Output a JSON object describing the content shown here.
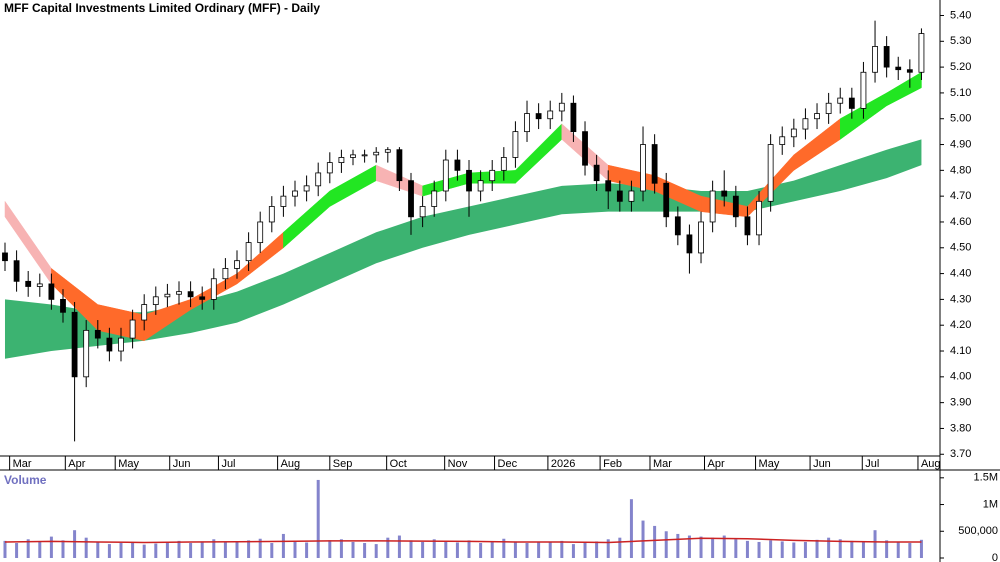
{
  "chart_data": [
    {
      "type": "candlestick",
      "title": "MFF Capital Investments Limited Ordinary (MFF) - Daily",
      "xlim": [
        -0.43,
        80.6
      ],
      "xticks": [
        {
          "value": 0.4,
          "label": "Mar"
        },
        {
          "value": 5.2,
          "label": "Apr"
        },
        {
          "value": 9.5,
          "label": "May"
        },
        {
          "value": 14.2,
          "label": "Jun"
        },
        {
          "value": 18.4,
          "label": "Jul"
        },
        {
          "value": 23.5,
          "label": "Aug"
        },
        {
          "value": 28,
          "label": "Sep"
        },
        {
          "value": 32.9,
          "label": "Oct"
        },
        {
          "value": 37.9,
          "label": "Nov"
        },
        {
          "value": 42.2,
          "label": "Dec"
        },
        {
          "value": 46.8,
          "label": "2026"
        },
        {
          "value": 51.3,
          "label": "Feb"
        },
        {
          "value": 55.6,
          "label": "Mar"
        },
        {
          "value": 60.3,
          "label": "Apr"
        },
        {
          "value": 64.7,
          "label": "May"
        },
        {
          "value": 69.4,
          "label": "Jun"
        },
        {
          "value": 73.9,
          "label": "Jul"
        },
        {
          "value": 78.7,
          "label": "Aug"
        }
      ],
      "ylim": [
        3.67,
        5.46
      ],
      "yticks": [
        {
          "value": 3.7,
          "label": "3.70"
        },
        {
          "value": 3.8,
          "label": "3.80"
        },
        {
          "value": 3.9,
          "label": "3.90"
        },
        {
          "value": 4.0,
          "label": "4.00"
        },
        {
          "value": 4.1,
          "label": "4.10"
        },
        {
          "value": 4.2,
          "label": "4.20"
        },
        {
          "value": 4.3,
          "label": "4.30"
        },
        {
          "value": 4.4,
          "label": "4.40"
        },
        {
          "value": 4.5,
          "label": "4.50"
        },
        {
          "value": 4.6,
          "label": "4.60"
        },
        {
          "value": 4.7,
          "label": "4.70"
        },
        {
          "value": 4.8,
          "label": "4.80"
        },
        {
          "value": 4.9,
          "label": "4.90"
        },
        {
          "value": 5.0,
          "label": "5.00"
        },
        {
          "value": 5.1,
          "label": "5.10"
        },
        {
          "value": 5.2,
          "label": "5.20"
        },
        {
          "value": 5.3,
          "label": "5.30"
        },
        {
          "value": 5.4,
          "label": "5.40"
        }
      ],
      "open": [
        4.48,
        4.45,
        4.37,
        4.35,
        4.36,
        4.3,
        4.25,
        4.0,
        4.18,
        4.15,
        4.1,
        4.15,
        4.22,
        4.28,
        4.31,
        4.32,
        4.33,
        4.31,
        4.3,
        4.38,
        4.42,
        4.45,
        4.52,
        4.6,
        4.66,
        4.7,
        4.72,
        4.74,
        4.79,
        4.83,
        4.85,
        4.86,
        4.86,
        4.87,
        4.88,
        4.76,
        4.62,
        4.66,
        4.72,
        4.84,
        4.8,
        4.72,
        4.76,
        4.8,
        4.85,
        4.95,
        5.02,
        5.0,
        5.03,
        5.06,
        4.95,
        4.82,
        4.76,
        4.72,
        4.68,
        4.72,
        4.9,
        4.75,
        4.62,
        4.55,
        4.48,
        4.6,
        4.72,
        4.7,
        4.62,
        4.55,
        4.68,
        4.9,
        4.93,
        4.96,
        5.0,
        5.02,
        5.06,
        5.08,
        5.04,
        5.18,
        5.28,
        5.2,
        5.19,
        5.18
      ],
      "high": [
        4.52,
        4.49,
        4.41,
        4.4,
        4.4,
        4.34,
        4.29,
        4.22,
        4.22,
        4.19,
        4.19,
        4.26,
        4.32,
        4.35,
        4.36,
        4.37,
        4.37,
        4.35,
        4.42,
        4.46,
        4.49,
        4.56,
        4.64,
        4.7,
        4.74,
        4.76,
        4.78,
        4.83,
        4.87,
        4.88,
        4.88,
        4.88,
        4.89,
        4.89,
        4.89,
        4.79,
        4.7,
        4.76,
        4.88,
        4.88,
        4.84,
        4.8,
        4.84,
        4.89,
        4.99,
        5.07,
        5.06,
        5.07,
        5.1,
        5.09,
        4.99,
        4.86,
        4.8,
        4.76,
        4.76,
        4.97,
        4.94,
        4.79,
        4.66,
        4.59,
        4.64,
        4.76,
        4.8,
        4.74,
        4.66,
        4.72,
        4.94,
        4.97,
        5.0,
        5.04,
        5.06,
        5.1,
        5.12,
        5.12,
        5.22,
        5.38,
        5.32,
        5.24,
        5.23,
        5.35
      ],
      "low": [
        4.41,
        4.33,
        4.31,
        4.31,
        4.26,
        4.21,
        3.75,
        3.96,
        4.11,
        4.06,
        4.06,
        4.11,
        4.18,
        4.24,
        4.27,
        4.28,
        4.27,
        4.26,
        4.26,
        4.34,
        4.38,
        4.41,
        4.48,
        4.56,
        4.62,
        4.66,
        4.68,
        4.7,
        4.75,
        4.79,
        4.82,
        4.83,
        4.83,
        4.83,
        4.72,
        4.55,
        4.58,
        4.62,
        4.68,
        4.76,
        4.62,
        4.68,
        4.72,
        4.76,
        4.81,
        4.91,
        4.96,
        4.96,
        4.99,
        4.91,
        4.78,
        4.72,
        4.65,
        4.64,
        4.64,
        4.68,
        4.71,
        4.58,
        4.51,
        4.4,
        4.44,
        4.56,
        4.66,
        4.58,
        4.51,
        4.51,
        4.64,
        4.86,
        4.89,
        4.92,
        4.96,
        4.98,
        5.02,
        5.0,
        5.0,
        5.14,
        5.16,
        5.15,
        5.12,
        5.15
      ],
      "close": [
        4.45,
        4.37,
        4.35,
        4.36,
        4.3,
        4.25,
        4.0,
        4.18,
        4.15,
        4.1,
        4.15,
        4.22,
        4.28,
        4.31,
        4.32,
        4.33,
        4.31,
        4.3,
        4.38,
        4.42,
        4.45,
        4.52,
        4.6,
        4.66,
        4.7,
        4.72,
        4.74,
        4.79,
        4.83,
        4.85,
        4.86,
        4.86,
        4.87,
        4.88,
        4.76,
        4.62,
        4.66,
        4.72,
        4.84,
        4.8,
        4.72,
        4.76,
        4.8,
        4.85,
        4.95,
        5.02,
        5.0,
        5.03,
        5.06,
        4.95,
        4.82,
        4.76,
        4.72,
        4.68,
        4.72,
        4.9,
        4.75,
        4.62,
        4.55,
        4.48,
        4.6,
        4.72,
        4.7,
        4.62,
        4.55,
        4.68,
        4.9,
        4.93,
        4.96,
        5.0,
        5.02,
        5.06,
        5.08,
        5.04,
        5.18,
        5.28,
        5.2,
        5.19,
        5.18,
        5.33
      ],
      "ma_x": [
        0,
        4,
        8,
        12,
        16,
        20,
        24,
        28,
        32,
        36,
        40,
        44,
        48,
        52,
        56,
        60,
        64,
        68,
        72,
        76,
        79
      ],
      "long_band": {
        "upper": [
          4.3,
          4.28,
          4.25,
          4.25,
          4.28,
          4.33,
          4.4,
          4.48,
          4.56,
          4.62,
          4.66,
          4.7,
          4.74,
          4.75,
          4.74,
          4.72,
          4.72,
          4.76,
          4.82,
          4.88,
          4.92
        ],
        "lower": [
          4.07,
          4.1,
          4.12,
          4.14,
          4.17,
          4.21,
          4.28,
          4.36,
          4.44,
          4.5,
          4.55,
          4.59,
          4.63,
          4.64,
          4.64,
          4.64,
          4.64,
          4.68,
          4.72,
          4.77,
          4.82
        ]
      },
      "short_band": {
        "upper": [
          4.68,
          4.42,
          4.28,
          4.24,
          4.3,
          4.4,
          4.56,
          4.72,
          4.82,
          4.74,
          4.79,
          4.8,
          4.98,
          4.82,
          4.78,
          4.7,
          4.66,
          4.86,
          5.0,
          5.1,
          5.18
        ],
        "lower": [
          4.62,
          4.36,
          4.18,
          4.14,
          4.26,
          4.36,
          4.5,
          4.66,
          4.76,
          4.7,
          4.75,
          4.75,
          4.92,
          4.76,
          4.72,
          4.64,
          4.62,
          4.8,
          4.92,
          5.05,
          5.12
        ]
      },
      "colors": {
        "up": "#ffffff",
        "down": "#000000",
        "long_band": "#3cb371",
        "rising": "#22e622",
        "falling": "#f7b3b3",
        "overlap": "#ff6a2a"
      }
    },
    {
      "type": "bar",
      "title": "Volume",
      "color": "#8484cc",
      "ma_color": "#cc2222",
      "xlim": [
        -0.43,
        80.6
      ],
      "ylim": [
        -75000,
        1590000
      ],
      "yticks": [
        {
          "value": 1500000,
          "label": "1.5M"
        },
        {
          "value": 1000000,
          "label": "1M"
        },
        {
          "value": 500000,
          "label": "500,000"
        },
        0
      ],
      "values": [
        320000,
        280000,
        350000,
        300000,
        400000,
        330000,
        520000,
        380000,
        300000,
        260000,
        280000,
        300000,
        250000,
        270000,
        300000,
        320000,
        280000,
        310000,
        350000,
        290000,
        300000,
        330000,
        360000,
        280000,
        450000,
        300000,
        290000,
        1460000,
        330000,
        350000,
        300000,
        280000,
        260000,
        380000,
        420000,
        330000,
        300000,
        350000,
        310000,
        290000,
        330000,
        280000,
        300000,
        360000,
        310000,
        280000,
        290000,
        300000,
        320000,
        260000,
        290000,
        310000,
        350000,
        380000,
        1100000,
        700000,
        600000,
        500000,
        450000,
        420000,
        400000,
        380000,
        420000,
        350000,
        320000,
        300000,
        330000,
        310000,
        290000,
        300000,
        340000,
        380000,
        350000,
        320000,
        310000,
        520000,
        330000,
        300000,
        280000,
        340000
      ],
      "ma_x": [
        0,
        4,
        8,
        12,
        16,
        20,
        24,
        28,
        32,
        36,
        40,
        44,
        48,
        52,
        56,
        60,
        64,
        68,
        72,
        76,
        79
      ],
      "ma": [
        300000,
        310000,
        300000,
        290000,
        300000,
        305000,
        310000,
        320000,
        320000,
        315000,
        310000,
        300000,
        300000,
        290000,
        330000,
        370000,
        360000,
        330000,
        310000,
        300000,
        300000
      ]
    }
  ]
}
